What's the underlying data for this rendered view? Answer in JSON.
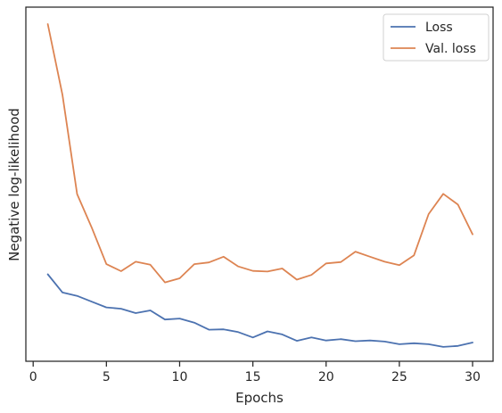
{
  "chart_data": {
    "type": "line",
    "title": "",
    "xlabel": "Epochs",
    "ylabel": "Negative log-likelihood",
    "xlim": [
      0,
      31
    ],
    "ylim": [
      0,
      1
    ],
    "xticks": [
      0,
      5,
      10,
      15,
      20,
      25,
      30
    ],
    "y_tick_labels_shown": false,
    "grid": false,
    "legend_position": "top-right",
    "x": [
      1,
      2,
      3,
      4,
      5,
      6,
      7,
      8,
      9,
      10,
      11,
      12,
      13,
      14,
      15,
      16,
      17,
      18,
      19,
      20,
      21,
      22,
      23,
      24,
      25,
      26,
      27,
      28,
      29,
      30
    ],
    "series": [
      {
        "name": "Loss",
        "color": "#4c72b0",
        "values": [
          0.26,
          0.206,
          0.196,
          0.179,
          0.162,
          0.158,
          0.145,
          0.153,
          0.126,
          0.129,
          0.117,
          0.096,
          0.097,
          0.089,
          0.073,
          0.091,
          0.082,
          0.063,
          0.073,
          0.064,
          0.068,
          0.062,
          0.064,
          0.061,
          0.053,
          0.056,
          0.053,
          0.045,
          0.048,
          0.058
        ]
      },
      {
        "name": "Val. loss",
        "color": "#dd8452",
        "values": [
          1.0,
          0.79,
          0.497,
          0.398,
          0.29,
          0.269,
          0.297,
          0.288,
          0.236,
          0.248,
          0.29,
          0.295,
          0.312,
          0.283,
          0.27,
          0.268,
          0.277,
          0.244,
          0.258,
          0.292,
          0.296,
          0.327,
          0.312,
          0.297,
          0.287,
          0.316,
          0.438,
          0.498,
          0.466,
          0.378
        ]
      }
    ]
  }
}
